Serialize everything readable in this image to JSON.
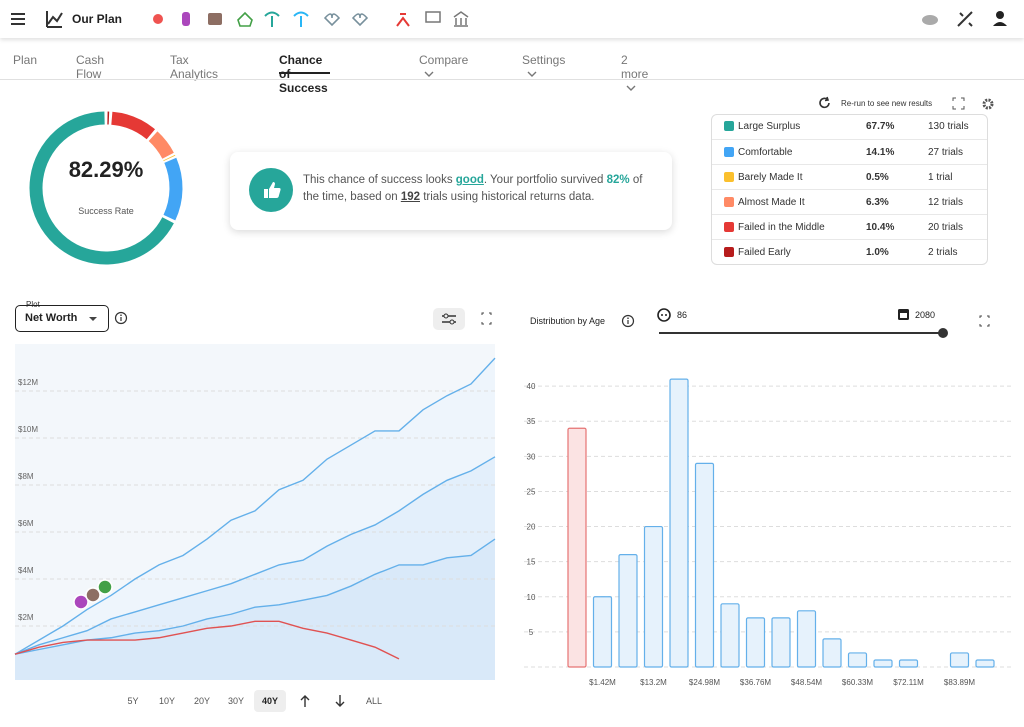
{
  "header": {
    "title": "Our Plan"
  },
  "tabs": [
    "Plan",
    "Cash Flow",
    "Tax Analytics",
    "Chance of Success",
    "Compare",
    "Settings",
    "2 more"
  ],
  "active_tab": 3,
  "gauge": {
    "value_label": "82.29%",
    "label": "Success Rate"
  },
  "message": {
    "text_1": "This chance of success looks ",
    "verdict": "good",
    "text_2": ". Your portfolio survived ",
    "survival": "82%",
    "text_3": " of the time, based on ",
    "trials": "192",
    "text_4": " trials using historical returns data."
  },
  "rerun": "Re-run to see new results",
  "outcomes": [
    {
      "name": "Large Surplus",
      "color": "#26a69a",
      "value": 67.7,
      "value_label": "67.7%",
      "trials": "130 trials"
    },
    {
      "name": "Comfortable",
      "color": "#42a5f5",
      "value": 14.1,
      "value_label": "14.1%",
      "trials": "27 trials"
    },
    {
      "name": "Barely Made It",
      "color": "#fbc02d",
      "value": 0.5,
      "value_label": "0.5%",
      "trials": "1 trial"
    },
    {
      "name": "Almost Made It",
      "color": "#ff8a65",
      "value": 6.3,
      "value_label": "6.3%",
      "trials": "12 trials"
    },
    {
      "name": "Failed in the Middle",
      "color": "#e53935",
      "value": 10.4,
      "value_label": "10.4%",
      "trials": "20 trials"
    },
    {
      "name": "Failed Early",
      "color": "#b71c1c",
      "value": 1.0,
      "value_label": "1.0%",
      "trials": "2 trials"
    }
  ],
  "plot_panel": {
    "label": "Plot",
    "selected": "Net Worth",
    "ranges": [
      "5Y",
      "10Y",
      "20Y",
      "30Y",
      "40Y",
      "ALL"
    ],
    "active_range": 4
  },
  "distribution_panel": {
    "title": "Distribution by Age",
    "age": "86",
    "year": "2080"
  },
  "chart_data": [
    {
      "type": "line",
      "ylim": [
        0,
        14000000
      ],
      "yticks": [
        {
          "value": 2000000,
          "label": "$2M"
        },
        {
          "value": 4000000,
          "label": "$4M"
        },
        {
          "value": 6000000,
          "label": "$6M"
        },
        {
          "value": 8000000,
          "label": "$8M"
        },
        {
          "value": 10000000,
          "label": "$10M"
        },
        {
          "value": 12000000,
          "label": "$12M"
        }
      ],
      "grid": true,
      "series": [
        {
          "color": "#64b0ea",
          "fill": "#eef5fc",
          "values": [
            800000,
            1400000,
            2000000,
            2700000,
            3300000,
            4000000,
            4600000,
            5000000,
            5700000,
            6500000,
            6900000,
            7800000,
            8200000,
            9100000,
            9700000,
            10300000,
            10300000,
            11200000,
            11800000,
            12300000,
            13400000
          ]
        },
        {
          "color": "#64b0ea",
          "fill": "#e3effb",
          "values": [
            800000,
            1200000,
            1500000,
            1800000,
            2300000,
            2600000,
            2900000,
            3200000,
            3500000,
            3800000,
            4200000,
            4600000,
            4800000,
            5400000,
            5900000,
            6300000,
            6900000,
            7600000,
            8200000,
            8600000,
            9200000
          ]
        },
        {
          "color": "#64b0ea",
          "fill": "#d9e9f9",
          "values": [
            800000,
            1000000,
            1200000,
            1400000,
            1500000,
            1700000,
            1800000,
            2000000,
            2300000,
            2500000,
            2800000,
            2900000,
            3100000,
            3300000,
            3700000,
            4200000,
            4600000,
            4600000,
            4900000,
            5000000,
            5700000
          ]
        },
        {
          "color": "#e05252",
          "values": [
            800000,
            1100000,
            1300000,
            1400000,
            1400000,
            1400000,
            1500000,
            1700000,
            1900000,
            2000000,
            2200000,
            2200000,
            1900000,
            1700000,
            1400000,
            1100000,
            600000,
            null,
            null,
            null,
            null
          ]
        }
      ]
    },
    {
      "type": "bar",
      "categories": [
        null,
        "$1.42M",
        null,
        "$13.2M",
        null,
        "$24.98M",
        null,
        "$36.76M",
        null,
        "$48.54M",
        null,
        "$60.33M",
        null,
        "$72.11M",
        null,
        "$83.89M",
        null
      ],
      "values": [
        34,
        10,
        16,
        20,
        41,
        29,
        9,
        7,
        7,
        8,
        4,
        2,
        1,
        1,
        0,
        2,
        1
      ],
      "colors": [
        "#fbe3e3",
        "#e6f2fc",
        "#e6f2fc",
        "#e6f2fc",
        "#e6f2fc",
        "#e6f2fc",
        "#e6f2fc",
        "#e6f2fc",
        "#e6f2fc",
        "#e6f2fc",
        "#e6f2fc",
        "#e6f2fc",
        "#e6f2fc",
        "#e6f2fc",
        "#e6f2fc",
        "#e6f2fc",
        "#e6f2fc"
      ],
      "edge_colors": [
        "#e57373",
        "#64b0ea",
        "#64b0ea",
        "#64b0ea",
        "#64b0ea",
        "#64b0ea",
        "#64b0ea",
        "#64b0ea",
        "#64b0ea",
        "#64b0ea",
        "#64b0ea",
        "#64b0ea",
        "#64b0ea",
        "#64b0ea",
        "#64b0ea",
        "#64b0ea",
        "#64b0ea"
      ],
      "ylim": [
        0,
        45
      ],
      "yticks": [
        5,
        10,
        15,
        20,
        25,
        30,
        35,
        40
      ],
      "grid": true
    }
  ]
}
